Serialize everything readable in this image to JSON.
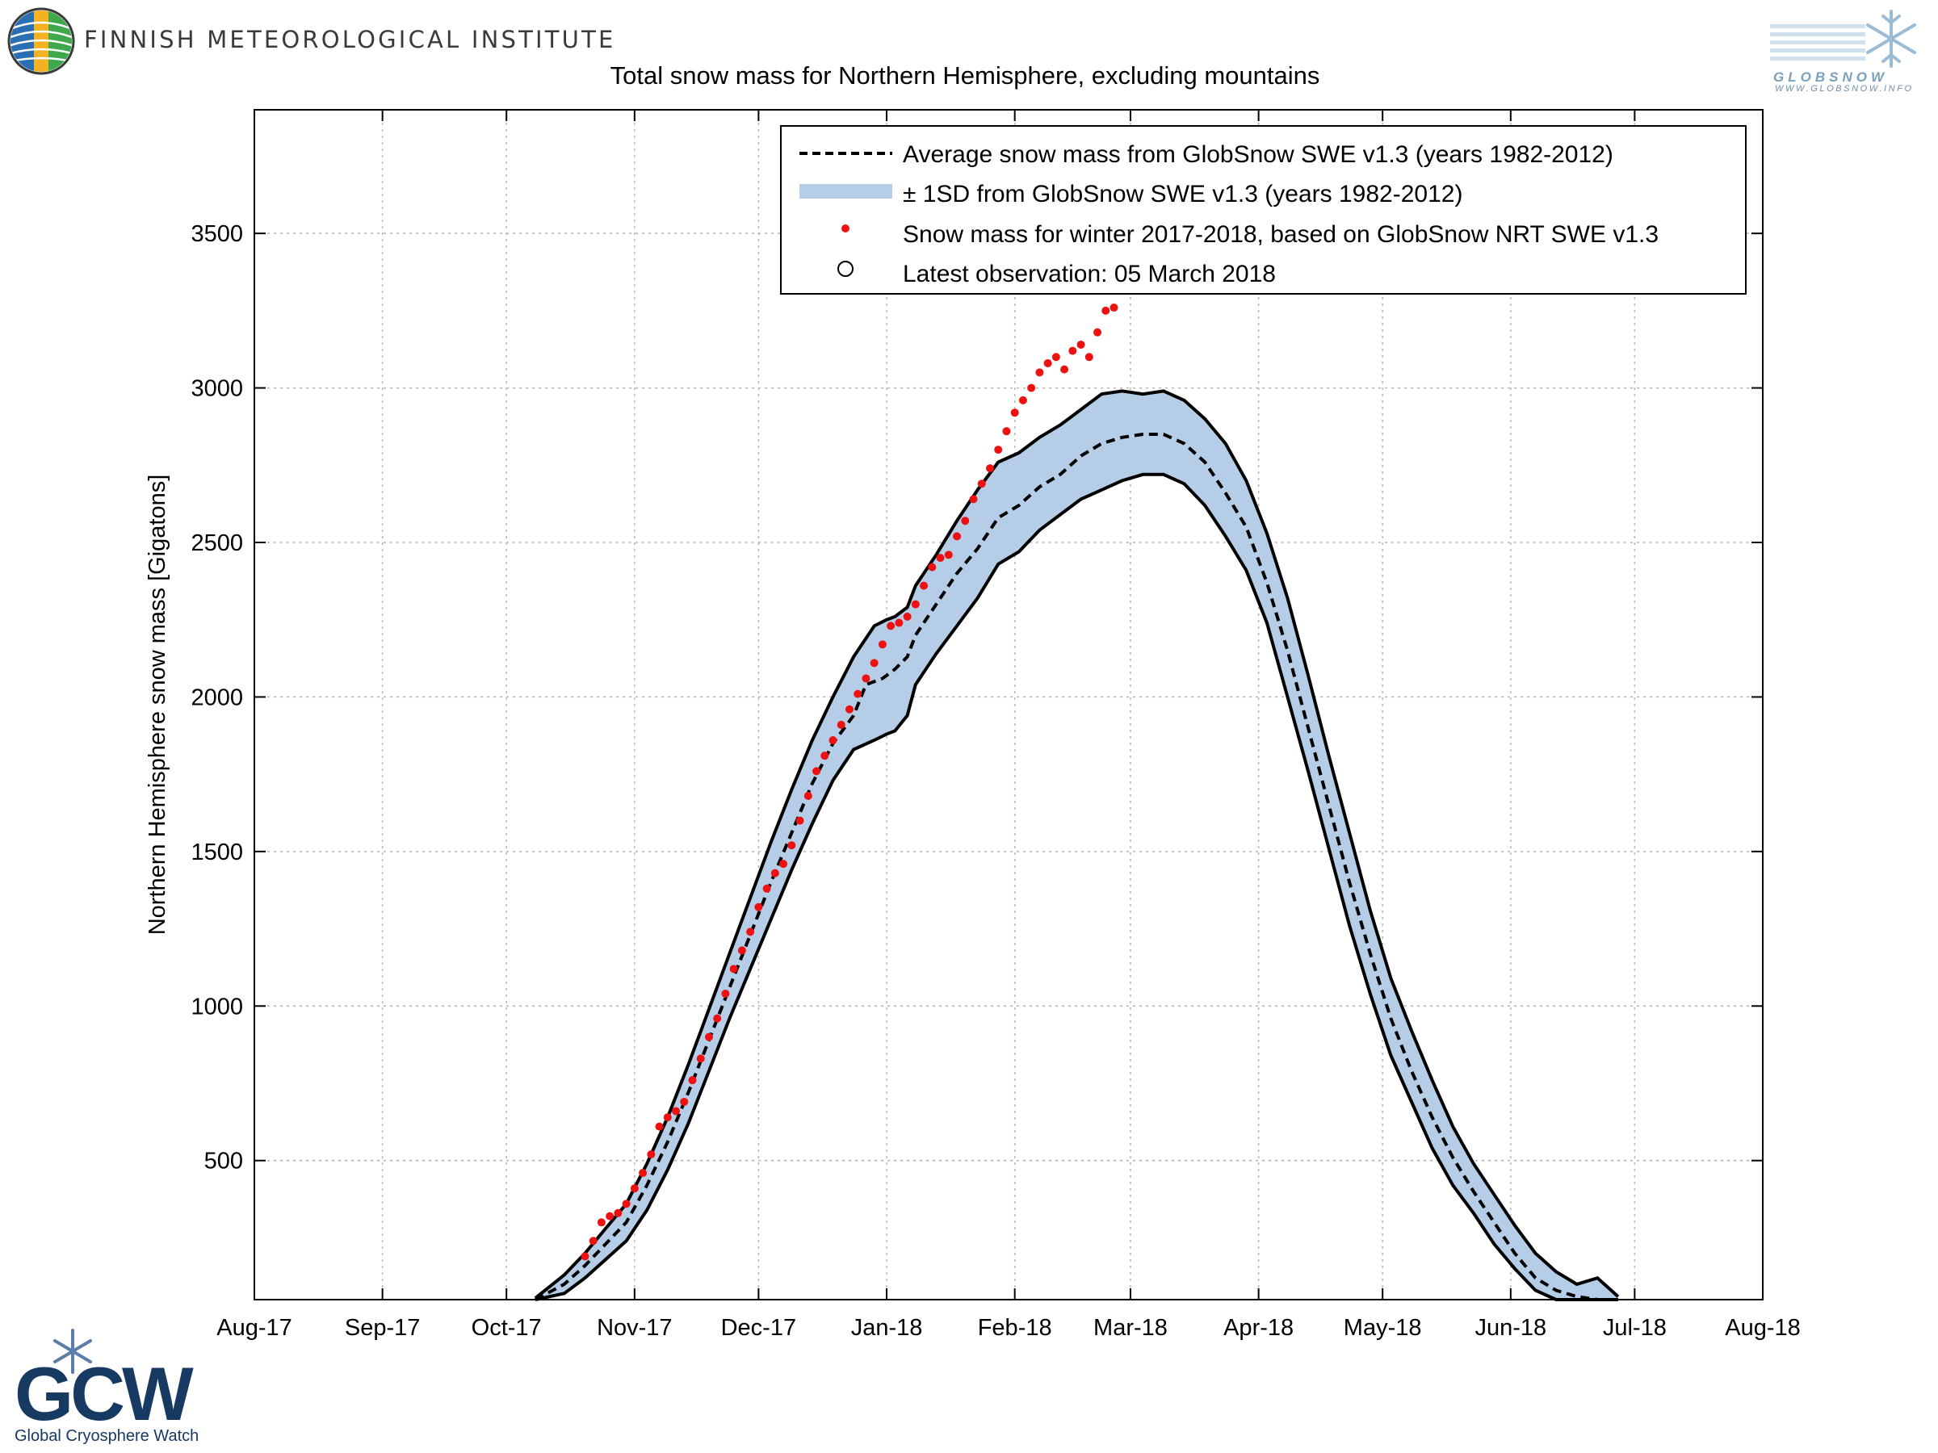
{
  "header": {
    "institute": "FINNISH METEOROLOGICAL INSTITUTE",
    "globsnow_name": "GLOBSNOW",
    "globsnow_url": "WWW.GLOBSNOW.INFO"
  },
  "footer": {
    "gcw_acronym": "GCW",
    "gcw_name": "Global Cryosphere Watch"
  },
  "colors": {
    "band": "#b5cde6",
    "points": "#ee1111",
    "lines": "#000000",
    "fmi_logo": [
      "#2a6fb3",
      "#f4b223",
      "#3fa84a"
    ],
    "gcw": "#173a63"
  },
  "chart_data": {
    "type": "line",
    "title": "Total snow mass for Northern Hemisphere, excluding mountains",
    "xlabel": "",
    "ylabel": "Northern Hemisphere snow mass [Gigatons]",
    "x_unit": "days since 2017-08-01",
    "xlim": [
      0,
      365
    ],
    "ylim": [
      50,
      3900
    ],
    "grid": true,
    "legend_position": "top-right",
    "x_ticks": [
      {
        "day": 0,
        "label": "Aug-17"
      },
      {
        "day": 31,
        "label": "Sep-17"
      },
      {
        "day": 61,
        "label": "Oct-17"
      },
      {
        "day": 92,
        "label": "Nov-17"
      },
      {
        "day": 122,
        "label": "Dec-17"
      },
      {
        "day": 153,
        "label": "Jan-18"
      },
      {
        "day": 184,
        "label": "Feb-18"
      },
      {
        "day": 212,
        "label": "Mar-18"
      },
      {
        "day": 243,
        "label": "Apr-18"
      },
      {
        "day": 273,
        "label": "May-18"
      },
      {
        "day": 304,
        "label": "Jun-18"
      },
      {
        "day": 334,
        "label": "Jul-18"
      },
      {
        "day": 365,
        "label": "Aug-18"
      }
    ],
    "y_ticks": [
      500,
      1000,
      1500,
      2000,
      2500,
      3000,
      3500
    ],
    "series": [
      {
        "name": "Average snow mass from GlobSnow SWE v1.3 (years 1982-2012)",
        "style": "dashed",
        "x": [
          68,
          75,
          80,
          85,
          90,
          95,
          100,
          105,
          110,
          115,
          120,
          125,
          130,
          135,
          140,
          145,
          148,
          152,
          155,
          158,
          160,
          165,
          170,
          175,
          180,
          185,
          190,
          195,
          200,
          205,
          210,
          215,
          220,
          225,
          230,
          235,
          240,
          245,
          250,
          255,
          260,
          265,
          270,
          275,
          280,
          285,
          290,
          295,
          300,
          305,
          310,
          315,
          320,
          325,
          330
        ],
        "y": [
          50,
          100,
          160,
          230,
          300,
          420,
          560,
          720,
          890,
          1060,
          1230,
          1400,
          1560,
          1720,
          1850,
          1940,
          2040,
          2060,
          2090,
          2130,
          2200,
          2300,
          2400,
          2480,
          2580,
          2620,
          2680,
          2720,
          2780,
          2820,
          2840,
          2850,
          2850,
          2820,
          2760,
          2660,
          2550,
          2370,
          2150,
          1900,
          1650,
          1400,
          1170,
          960,
          790,
          640,
          510,
          400,
          300,
          200,
          120,
          80,
          60,
          50,
          50
        ]
      },
      {
        "name": "± 1SD from GlobSnow SWE v1.3 (years 1982-2012)",
        "style": "band",
        "x": [
          68,
          75,
          80,
          85,
          90,
          95,
          100,
          105,
          110,
          115,
          120,
          125,
          130,
          135,
          140,
          145,
          150,
          153,
          155,
          158,
          160,
          165,
          170,
          175,
          180,
          185,
          190,
          195,
          200,
          205,
          210,
          215,
          220,
          225,
          230,
          235,
          240,
          245,
          250,
          255,
          260,
          265,
          270,
          275,
          280,
          285,
          290,
          295,
          300,
          305,
          310,
          315,
          320,
          325,
          330
        ],
        "upper": [
          55,
          130,
          200,
          280,
          360,
          490,
          640,
          810,
          990,
          1170,
          1350,
          1530,
          1700,
          1860,
          2000,
          2130,
          2230,
          2250,
          2260,
          2290,
          2360,
          2460,
          2570,
          2670,
          2760,
          2790,
          2840,
          2880,
          2930,
          2980,
          2990,
          2980,
          2990,
          2960,
          2900,
          2820,
          2700,
          2530,
          2320,
          2070,
          1810,
          1560,
          1310,
          1090,
          920,
          760,
          610,
          490,
          390,
          290,
          200,
          140,
          100,
          120,
          60
        ],
        "lower": [
          50,
          70,
          120,
          180,
          240,
          340,
          470,
          620,
          790,
          960,
          1120,
          1280,
          1440,
          1590,
          1730,
          1830,
          1860,
          1880,
          1890,
          1940,
          2040,
          2140,
          2230,
          2320,
          2430,
          2470,
          2540,
          2590,
          2640,
          2670,
          2700,
          2720,
          2720,
          2690,
          2620,
          2520,
          2410,
          2240,
          2000,
          1760,
          1510,
          1260,
          1040,
          840,
          690,
          540,
          420,
          330,
          230,
          150,
          80,
          50,
          50,
          50,
          50
        ]
      },
      {
        "name": "Snow mass for winter 2017-2018, based on GlobSnow NRT SWE v1.3",
        "style": "points",
        "x": [
          80,
          82,
          84,
          86,
          88,
          90,
          92,
          94,
          96,
          98,
          100,
          102,
          104,
          106,
          108,
          110,
          112,
          114,
          116,
          118,
          120,
          122,
          124,
          126,
          128,
          130,
          132,
          134,
          136,
          138,
          140,
          142,
          144,
          146,
          148,
          150,
          152,
          154,
          156,
          158,
          160,
          162,
          164,
          166,
          168,
          170,
          172,
          174,
          176,
          178,
          180,
          182,
          184,
          186,
          188,
          190,
          192,
          194,
          196,
          198,
          200,
          202,
          204,
          206,
          208
        ],
        "y": [
          190,
          240,
          300,
          320,
          330,
          360,
          410,
          460,
          520,
          610,
          640,
          660,
          690,
          760,
          830,
          900,
          960,
          1040,
          1120,
          1180,
          1240,
          1320,
          1380,
          1430,
          1460,
          1520,
          1600,
          1680,
          1760,
          1810,
          1860,
          1910,
          1960,
          2010,
          2060,
          2110,
          2170,
          2230,
          2240,
          2260,
          2300,
          2360,
          2420,
          2450,
          2460,
          2520,
          2570,
          2640,
          2690,
          2740,
          2800,
          2860,
          2920,
          2960,
          3000,
          3050,
          3080,
          3100,
          3060,
          3120,
          3140,
          3100,
          3180,
          3250,
          3260
        ]
      },
      {
        "name": "Latest observation: 05 March 2018",
        "style": "marker",
        "x": [
          216
        ],
        "y": [
          3340
        ]
      }
    ]
  }
}
